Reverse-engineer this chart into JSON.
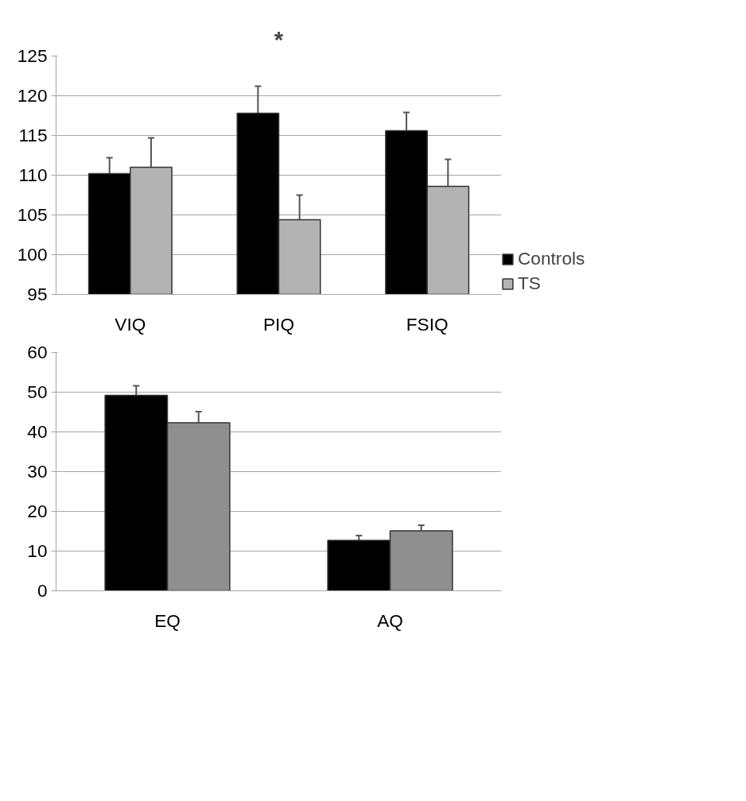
{
  "chart_data": [
    {
      "type": "bar",
      "categories": [
        "VIQ",
        "PIQ",
        "FSIQ"
      ],
      "ylim": [
        95,
        125
      ],
      "yticks": [
        95,
        100,
        105,
        110,
        115,
        120,
        125
      ],
      "grid": "y",
      "legend": "right",
      "annotations": [
        "*"
      ],
      "series": [
        {
          "name": "Controls",
          "color": "#000000",
          "values": [
            110.2,
            117.8,
            115.6
          ],
          "errors": [
            2.0,
            3.4,
            2.3
          ]
        },
        {
          "name": "TS",
          "color": "#b3b3b3",
          "values": [
            111.0,
            104.4,
            108.6
          ],
          "errors": [
            3.7,
            3.1,
            3.4
          ]
        }
      ]
    },
    {
      "type": "bar",
      "categories": [
        "EQ",
        "AQ"
      ],
      "ylim": [
        0,
        60
      ],
      "yticks": [
        0,
        10,
        20,
        30,
        40,
        50,
        60
      ],
      "grid": "y",
      "series": [
        {
          "color": "#000000",
          "values": [
            49.2,
            12.7
          ],
          "errors": [
            2.4,
            1.2
          ]
        },
        {
          "color": "#8f8f8f",
          "values": [
            42.3,
            15.1
          ],
          "errors": [
            2.8,
            1.4
          ]
        }
      ]
    }
  ]
}
